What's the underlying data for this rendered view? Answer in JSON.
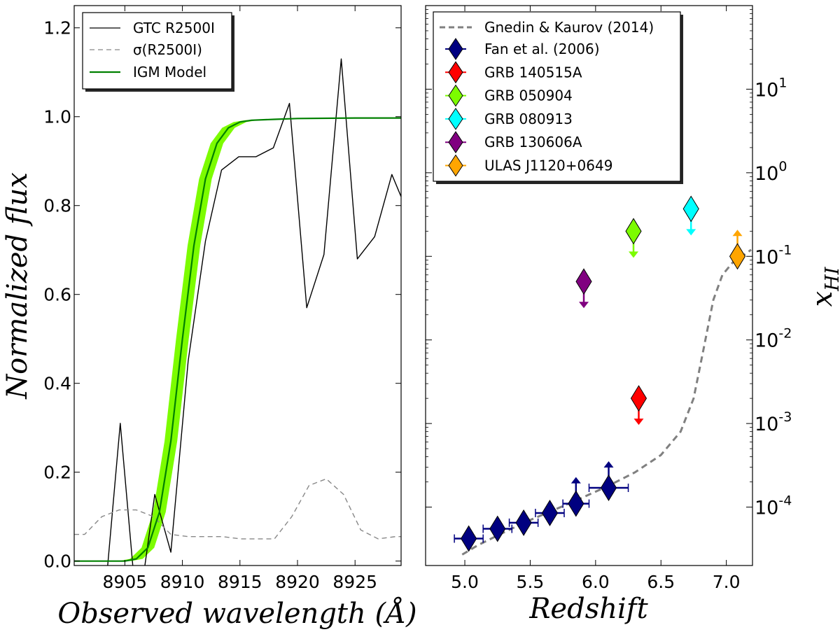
{
  "chart_data": [
    {
      "type": "line",
      "xlabel": "Observed wavelength (Å)",
      "ylabel": "Normalized flux",
      "xlim": [
        8900.6,
        8929.0
      ],
      "ylim": [
        -0.01,
        1.25
      ],
      "xticks": [
        8905,
        8910,
        8915,
        8920,
        8925
      ],
      "xtick_labels": [
        "8905",
        "8910",
        "8915",
        "8920",
        "8925"
      ],
      "yticks": [
        0.0,
        0.2,
        0.4,
        0.6,
        0.8,
        1.0,
        1.2
      ],
      "ytick_labels": [
        "0.0",
        "0.2",
        "0.4",
        "0.6",
        "0.8",
        "1.0",
        "1.2"
      ],
      "legend_position": "top-left",
      "series": [
        {
          "name": "GTC R2500I",
          "color": "#000000",
          "style": "solid",
          "x": [
            8903.1,
            8904.6,
            8906.1,
            8907.6,
            8909.0,
            8910.5,
            8912.0,
            8913.4,
            8914.9,
            8916.4,
            8917.9,
            8919.3,
            8920.8,
            8922.3,
            8923.8,
            8925.2,
            8926.7,
            8928.2,
            8929.0
          ],
          "y": [
            -0.13,
            0.31,
            -0.13,
            0.15,
            0.02,
            0.45,
            0.72,
            0.88,
            0.91,
            0.91,
            0.93,
            1.03,
            0.57,
            0.69,
            1.13,
            0.68,
            0.73,
            0.87,
            0.82
          ]
        },
        {
          "name": "σ(R2500I)",
          "color": "#888888",
          "style": "dashed",
          "x": [
            8900.6,
            8901.5,
            8903.0,
            8904.5,
            8906.0,
            8907.5,
            8909.0,
            8910.5,
            8912.0,
            8913.5,
            8915.0,
            8916.5,
            8918.0,
            8919.5,
            8921.0,
            8922.5,
            8924.0,
            8925.5,
            8927.0,
            8928.5,
            8929.0
          ],
          "y": [
            0.06,
            0.06,
            0.1,
            0.115,
            0.115,
            0.1,
            0.06,
            0.055,
            0.055,
            0.055,
            0.05,
            0.05,
            0.05,
            0.1,
            0.17,
            0.185,
            0.15,
            0.07,
            0.05,
            0.055,
            0.055
          ]
        },
        {
          "name": "IGM Model",
          "color": "#008000",
          "style": "solid",
          "x": [
            8900.6,
            8905.0,
            8906.0,
            8907.0,
            8908.0,
            8909.0,
            8910.0,
            8911.0,
            8912.0,
            8913.0,
            8914.0,
            8915.0,
            8916.0,
            8918.0,
            8920.0,
            8925.0,
            8929.0
          ],
          "y": [
            0.0,
            0.0,
            0.005,
            0.03,
            0.11,
            0.27,
            0.5,
            0.71,
            0.86,
            0.94,
            0.975,
            0.988,
            0.992,
            0.994,
            0.996,
            0.997,
            0.997
          ],
          "band": {
            "color": "#7cfc00",
            "x_offset": 0.55,
            "x_offset_unit": "Å"
          }
        }
      ]
    },
    {
      "type": "scatter",
      "xlabel": "Redshift",
      "ylabel": "x_HI",
      "xlim": [
        4.7,
        7.2
      ],
      "ylim": [
        2e-05,
        100
      ],
      "yscale": "log",
      "y_axis_side": "right",
      "xticks": [
        5.0,
        5.5,
        6.0,
        6.5,
        7.0
      ],
      "xtick_labels": [
        "5.0",
        "5.5",
        "6.0",
        "6.5",
        "7.0"
      ],
      "yticks": [
        0.0001,
        0.001,
        0.01,
        0.1,
        1,
        10
      ],
      "ytick_labels": [
        {
          "base": "10",
          "exp": "-4"
        },
        {
          "base": "10",
          "exp": "-3"
        },
        {
          "base": "10",
          "exp": "-2"
        },
        {
          "base": "10",
          "exp": "-1"
        },
        {
          "base": "10",
          "exp": "0"
        },
        {
          "base": "10",
          "exp": "1"
        }
      ],
      "legend_position": "top-left",
      "model": {
        "name": "Gnedin & Kaurov (2014)",
        "color": "#808080",
        "style": "dashed",
        "x": [
          4.98,
          5.1,
          5.3,
          5.5,
          5.7,
          5.9,
          6.1,
          6.3,
          6.5,
          6.65,
          6.75,
          6.82,
          6.9,
          6.97,
          7.05,
          7.12,
          7.19
        ],
        "y": [
          2.7e-05,
          3.5e-05,
          5e-05,
          7e-05,
          9.5e-05,
          0.00013,
          0.00018,
          0.00026,
          0.00042,
          0.0008,
          0.002,
          0.007,
          0.03,
          0.06,
          0.085,
          0.1,
          0.12
        ]
      },
      "series": [
        {
          "name": "Fan et al. (2006)",
          "color": "#000080",
          "points": [
            {
              "x": 5.03,
              "y": 4.2e-05,
              "xerr": 0.11,
              "yerr": 0.2
            },
            {
              "x": 5.25,
              "y": 5.5e-05,
              "xerr": 0.11,
              "yerr": 0.2
            },
            {
              "x": 5.45,
              "y": 6.5e-05,
              "xerr": 0.11,
              "yerr": 0.2
            },
            {
              "x": 5.65,
              "y": 8.5e-05,
              "xerr": 0.11,
              "yerr": 0.2
            },
            {
              "x": 5.85,
              "y": 0.00011,
              "xerr": 0.1,
              "yerr": 0.2,
              "limit": "lower"
            },
            {
              "x": 6.1,
              "y": 0.00017,
              "xerr": 0.15,
              "yerr": 0.2,
              "limit": "lower"
            }
          ]
        },
        {
          "name": "GRB 140515A",
          "color": "#ff0000",
          "points": [
            {
              "x": 6.33,
              "y": 0.002,
              "limit": "upper"
            }
          ]
        },
        {
          "name": "GRB 050904",
          "color": "#7cfc00",
          "points": [
            {
              "x": 6.29,
              "y": 0.2,
              "limit": "upper"
            }
          ]
        },
        {
          "name": "GRB 080913",
          "color": "#00ffff",
          "points": [
            {
              "x": 6.73,
              "y": 0.37,
              "limit": "upper"
            }
          ]
        },
        {
          "name": "GRB 130606A",
          "color": "#800080",
          "points": [
            {
              "x": 5.91,
              "y": 0.05,
              "limit": "upper"
            }
          ]
        },
        {
          "name": "ULAS J1120+0649",
          "color": "#ffa500",
          "points": [
            {
              "x": 7.085,
              "y": 0.1,
              "limit": "lower"
            }
          ]
        }
      ]
    }
  ]
}
